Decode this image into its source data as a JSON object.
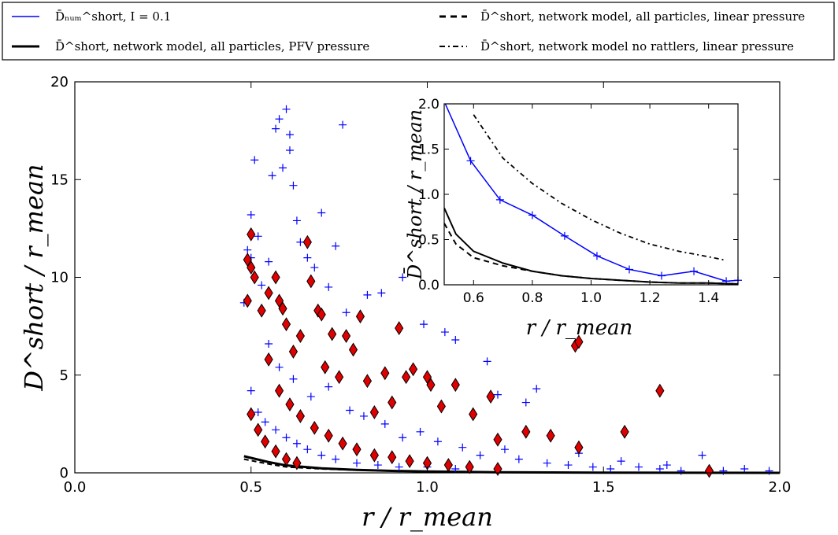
{
  "legend": {
    "items": [
      {
        "key": "blue",
        "text": "D̄ₙᵤₘ^short, I = 0.1",
        "color": "#0000ff",
        "style": "solid"
      },
      {
        "key": "pfv",
        "text": "D̄^short, network model, all particles, PFV pressure",
        "color": "#000000",
        "style": "solid-thick"
      },
      {
        "key": "linear",
        "text": "D̄^short, network model, all particles, linear pressure",
        "color": "#000000",
        "style": "dashed"
      },
      {
        "key": "norattlers",
        "text": "D̄^short, network model no rattlers, linear pressure",
        "color": "#000000",
        "style": "dashdot"
      }
    ]
  },
  "colors": {
    "numerical": "#0000ff",
    "network": "#e00000",
    "model": "#000000"
  },
  "chart_data": [
    {
      "type": "scatter",
      "xlabel": "r / r_mean",
      "ylabel": "D^short / r_mean",
      "xlim": [
        0.0,
        2.0
      ],
      "ylim": [
        0,
        20
      ],
      "xticks": [
        "0.0",
        "0.5",
        "1.0",
        "1.5",
        "2.0"
      ],
      "yticks": [
        "0",
        "5",
        "10",
        "15",
        "20"
      ],
      "grid": false,
      "series": [
        {
          "marker": "plus",
          "points": [
            [
              0.48,
              8.7
            ],
            [
              0.49,
              11.4
            ],
            [
              0.5,
              13.2
            ],
            [
              0.5,
              11.0
            ],
            [
              0.51,
              16.0
            ],
            [
              0.52,
              12.1
            ],
            [
              0.53,
              9.6
            ],
            [
              0.55,
              10.8
            ],
            [
              0.56,
              15.2
            ],
            [
              0.57,
              17.6
            ],
            [
              0.58,
              18.1
            ],
            [
              0.59,
              15.6
            ],
            [
              0.6,
              18.6
            ],
            [
              0.61,
              17.3
            ],
            [
              0.61,
              16.5
            ],
            [
              0.62,
              14.7
            ],
            [
              0.63,
              12.9
            ],
            [
              0.64,
              11.8
            ],
            [
              0.66,
              11.0
            ],
            [
              0.68,
              10.5
            ],
            [
              0.7,
              13.3
            ],
            [
              0.72,
              9.5
            ],
            [
              0.74,
              11.6
            ],
            [
              0.76,
              17.8
            ],
            [
              0.77,
              8.2
            ],
            [
              0.83,
              9.1
            ],
            [
              0.87,
              9.2
            ],
            [
              0.93,
              10.0
            ],
            [
              0.99,
              7.6
            ],
            [
              1.05,
              7.2
            ],
            [
              1.08,
              6.8
            ],
            [
              1.17,
              5.7
            ],
            [
              1.2,
              4.0
            ],
            [
              1.28,
              3.6
            ],
            [
              1.31,
              4.3
            ],
            [
              1.43,
              1.0
            ],
            [
              1.55,
              0.6
            ],
            [
              1.68,
              0.4
            ],
            [
              1.78,
              0.9
            ],
            [
              1.9,
              0.2
            ],
            [
              1.97,
              0.1
            ],
            [
              0.55,
              6.6
            ],
            [
              0.58,
              5.4
            ],
            [
              0.62,
              4.8
            ],
            [
              0.67,
              3.9
            ],
            [
              0.72,
              4.4
            ],
            [
              0.78,
              3.2
            ],
            [
              0.82,
              2.9
            ],
            [
              0.88,
              2.5
            ],
            [
              0.93,
              1.8
            ],
            [
              0.98,
              2.1
            ],
            [
              1.03,
              1.6
            ],
            [
              1.1,
              1.3
            ],
            [
              1.15,
              0.9
            ],
            [
              1.22,
              1.2
            ],
            [
              1.26,
              0.7
            ],
            [
              1.34,
              0.5
            ],
            [
              1.4,
              0.4
            ],
            [
              1.47,
              0.3
            ],
            [
              1.52,
              0.2
            ],
            [
              1.6,
              0.3
            ],
            [
              1.66,
              0.2
            ],
            [
              1.72,
              0.1
            ],
            [
              1.84,
              0.1
            ],
            [
              0.5,
              4.2
            ],
            [
              0.52,
              3.1
            ],
            [
              0.54,
              2.6
            ],
            [
              0.57,
              2.2
            ],
            [
              0.6,
              1.8
            ],
            [
              0.63,
              1.5
            ],
            [
              0.66,
              1.2
            ],
            [
              0.7,
              0.9
            ],
            [
              0.74,
              0.7
            ],
            [
              0.8,
              0.5
            ],
            [
              0.86,
              0.4
            ],
            [
              0.92,
              0.3
            ],
            [
              1.0,
              0.3
            ],
            [
              1.08,
              0.2
            ]
          ]
        },
        {
          "marker": "diamond",
          "points": [
            [
              0.49,
              8.8
            ],
            [
              0.49,
              10.9
            ],
            [
              0.5,
              12.2
            ],
            [
              0.5,
              10.5
            ],
            [
              0.51,
              10.0
            ],
            [
              0.53,
              8.3
            ],
            [
              0.55,
              9.2
            ],
            [
              0.57,
              10.0
            ],
            [
              0.58,
              8.8
            ],
            [
              0.59,
              8.4
            ],
            [
              0.6,
              7.6
            ],
            [
              0.62,
              6.2
            ],
            [
              0.64,
              7.0
            ],
            [
              0.66,
              11.8
            ],
            [
              0.67,
              9.8
            ],
            [
              0.69,
              8.3
            ],
            [
              0.7,
              8.1
            ],
            [
              0.71,
              5.4
            ],
            [
              0.73,
              7.1
            ],
            [
              0.75,
              4.9
            ],
            [
              0.77,
              7.0
            ],
            [
              0.79,
              6.3
            ],
            [
              0.81,
              8.0
            ],
            [
              0.83,
              4.7
            ],
            [
              0.85,
              3.1
            ],
            [
              0.88,
              5.1
            ],
            [
              0.9,
              3.6
            ],
            [
              0.92,
              7.4
            ],
            [
              0.94,
              4.9
            ],
            [
              0.96,
              5.3
            ],
            [
              1.0,
              4.9
            ],
            [
              1.01,
              4.5
            ],
            [
              1.04,
              3.4
            ],
            [
              1.08,
              4.5
            ],
            [
              1.13,
              3.0
            ],
            [
              1.18,
              3.9
            ],
            [
              1.2,
              1.7
            ],
            [
              1.28,
              2.1
            ],
            [
              1.35,
              1.9
            ],
            [
              1.42,
              6.5
            ],
            [
              1.43,
              6.7
            ],
            [
              1.43,
              1.3
            ],
            [
              1.56,
              2.1
            ],
            [
              1.66,
              4.2
            ],
            [
              1.8,
              0.1
            ],
            [
              0.55,
              5.8
            ],
            [
              0.58,
              4.2
            ],
            [
              0.61,
              3.5
            ],
            [
              0.64,
              2.9
            ],
            [
              0.68,
              2.3
            ],
            [
              0.72,
              1.9
            ],
            [
              0.76,
              1.5
            ],
            [
              0.8,
              1.2
            ],
            [
              0.85,
              0.9
            ],
            [
              0.9,
              0.8
            ],
            [
              0.95,
              0.6
            ],
            [
              1.0,
              0.5
            ],
            [
              1.06,
              0.4
            ],
            [
              1.12,
              0.3
            ],
            [
              1.2,
              0.2
            ],
            [
              0.5,
              3.0
            ],
            [
              0.52,
              2.2
            ],
            [
              0.54,
              1.6
            ],
            [
              0.57,
              1.1
            ],
            [
              0.6,
              0.7
            ],
            [
              0.63,
              0.5
            ]
          ]
        }
      ],
      "lines": [
        {
          "style": "solid-thick",
          "x": [
            0.48,
            0.55,
            0.6,
            0.7,
            0.8,
            0.9,
            1.0,
            1.2,
            1.5,
            2.0
          ],
          "y": [
            0.85,
            0.55,
            0.38,
            0.23,
            0.15,
            0.1,
            0.07,
            0.03,
            0.01,
            0.0
          ]
        },
        {
          "style": "dashed",
          "x": [
            0.48,
            0.55,
            0.6,
            0.7,
            0.8,
            0.9,
            1.0,
            1.2,
            1.5,
            2.0
          ],
          "y": [
            0.7,
            0.45,
            0.3,
            0.2,
            0.14,
            0.1,
            0.07,
            0.03,
            0.01,
            0.0
          ]
        }
      ]
    },
    {
      "type": "line",
      "inset": true,
      "xlabel": "r / r_mean",
      "ylabel": "D̄^short / r_mean",
      "xlim": [
        0.5,
        1.5
      ],
      "ylim": [
        0,
        2.0
      ],
      "xticks": [
        "0.6",
        "0.8",
        "1.0",
        "1.2",
        "1.4"
      ],
      "yticks": [
        "0.0",
        "0.5",
        "1.0",
        "1.5",
        "2.0"
      ],
      "series": [
        {
          "key": "blue",
          "x": [
            0.49,
            0.59,
            0.69,
            0.8,
            0.91,
            1.02,
            1.13,
            1.24,
            1.35,
            1.46,
            1.5
          ],
          "y": [
            2.1,
            1.37,
            0.94,
            0.77,
            0.54,
            0.32,
            0.17,
            0.1,
            0.15,
            0.04,
            0.05
          ]
        },
        {
          "key": "pfv",
          "x": [
            0.5,
            0.54,
            0.6,
            0.7,
            0.8,
            0.9,
            1.0,
            1.1,
            1.2,
            1.3,
            1.4,
            1.5
          ],
          "y": [
            0.85,
            0.56,
            0.37,
            0.24,
            0.15,
            0.1,
            0.07,
            0.05,
            0.03,
            0.02,
            0.02,
            0.01
          ]
        },
        {
          "key": "linear",
          "x": [
            0.5,
            0.54,
            0.6,
            0.7,
            0.8,
            0.9,
            1.0,
            1.1,
            1.2,
            1.3,
            1.4,
            1.5
          ],
          "y": [
            0.68,
            0.45,
            0.3,
            0.21,
            0.15,
            0.1,
            0.07,
            0.05,
            0.03,
            0.02,
            0.02,
            0.01
          ]
        },
        {
          "key": "norattlers",
          "x": [
            0.6,
            0.7,
            0.8,
            0.9,
            1.0,
            1.1,
            1.2,
            1.3,
            1.4,
            1.46
          ],
          "y": [
            1.88,
            1.4,
            1.12,
            0.9,
            0.72,
            0.57,
            0.45,
            0.37,
            0.31,
            0.27
          ]
        }
      ]
    }
  ]
}
